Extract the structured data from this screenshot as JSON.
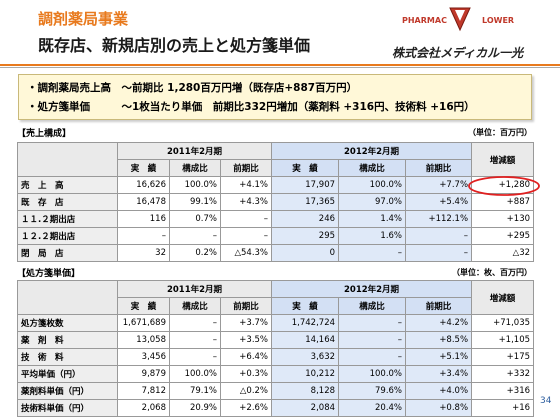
{
  "header": {
    "category": "調剤薬局事業",
    "title": "既存店、新規店別の売上と処方箋単価"
  },
  "logo": {
    "left": "PHARMAC",
    "right": "LOWER"
  },
  "company": "株式会社メディカル一光",
  "summary": [
    "・調剤薬局売上高　～前期比 1,280百万円増（既存店+887百万円）",
    "・処方箋単価　　　～1枚当たり単価　前期比332円増加（薬剤料 +316円、技術料 +16円）"
  ],
  "sales": {
    "label": "【売上構成】",
    "unit": "（単位：百万円）",
    "groups": [
      "2011年2月期",
      "2012年2月期"
    ],
    "change_header": "増減額",
    "columns": [
      "実　績",
      "構成比",
      "前期比",
      "実　績",
      "構成比",
      "前期比"
    ],
    "rows": [
      {
        "label": "売　上　高",
        "cells": [
          "16,626",
          "100.0%",
          "+4.1%",
          "17,907",
          "100.0%",
          "+7.7%",
          "+1,280"
        ]
      },
      {
        "label": "既　存　店",
        "cells": [
          "16,478",
          "99.1%",
          "+4.3%",
          "17,365",
          "97.0%",
          "+5.4%",
          "+887"
        ]
      },
      {
        "label": "１１.２期出店",
        "cells": [
          "116",
          "0.7%",
          "–",
          "246",
          "1.4%",
          "+112.1%",
          "+130"
        ]
      },
      {
        "label": "１２.２期出店",
        "cells": [
          "–",
          "–",
          "–",
          "295",
          "1.6%",
          "–",
          "+295"
        ]
      },
      {
        "label": "閉　局　店",
        "cells": [
          "32",
          "0.2%",
          "△54.3%",
          "0",
          "–",
          "–",
          "△32"
        ]
      }
    ]
  },
  "prescription": {
    "label": "【処方箋単価】",
    "unit": "（単位：枚、百万円）",
    "groups": [
      "2011年2月期",
      "2012年2月期"
    ],
    "change_header": "増減額",
    "columns": [
      "実　績",
      "構成比",
      "前期比",
      "実　績",
      "構成比",
      "前期比"
    ],
    "rows": [
      {
        "label": "処方箋枚数",
        "cells": [
          "1,671,689",
          "–",
          "+3.7%",
          "1,742,724",
          "–",
          "+4.2%",
          "+71,035"
        ]
      },
      {
        "label": "薬　剤　料",
        "cells": [
          "13,058",
          "–",
          "+3.5%",
          "14,164",
          "–",
          "+8.5%",
          "+1,105"
        ]
      },
      {
        "label": "技　術　料",
        "cells": [
          "3,456",
          "–",
          "+6.4%",
          "3,632",
          "–",
          "+5.1%",
          "+175"
        ]
      },
      {
        "label": "平均単価（円）",
        "cells": [
          "9,879",
          "100.0%",
          "+0.3%",
          "10,212",
          "100.0%",
          "+3.4%",
          "+332"
        ]
      },
      {
        "label": "薬剤料単価（円）",
        "cells": [
          "7,812",
          "79.1%",
          "△0.2%",
          "8,128",
          "79.6%",
          "+4.0%",
          "+316"
        ]
      },
      {
        "label": "技術料単価（円）",
        "cells": [
          "2,068",
          "20.9%",
          "+2.6%",
          "2,084",
          "20.4%",
          "+0.8%",
          "+16"
        ]
      }
    ]
  },
  "page_number": "34"
}
